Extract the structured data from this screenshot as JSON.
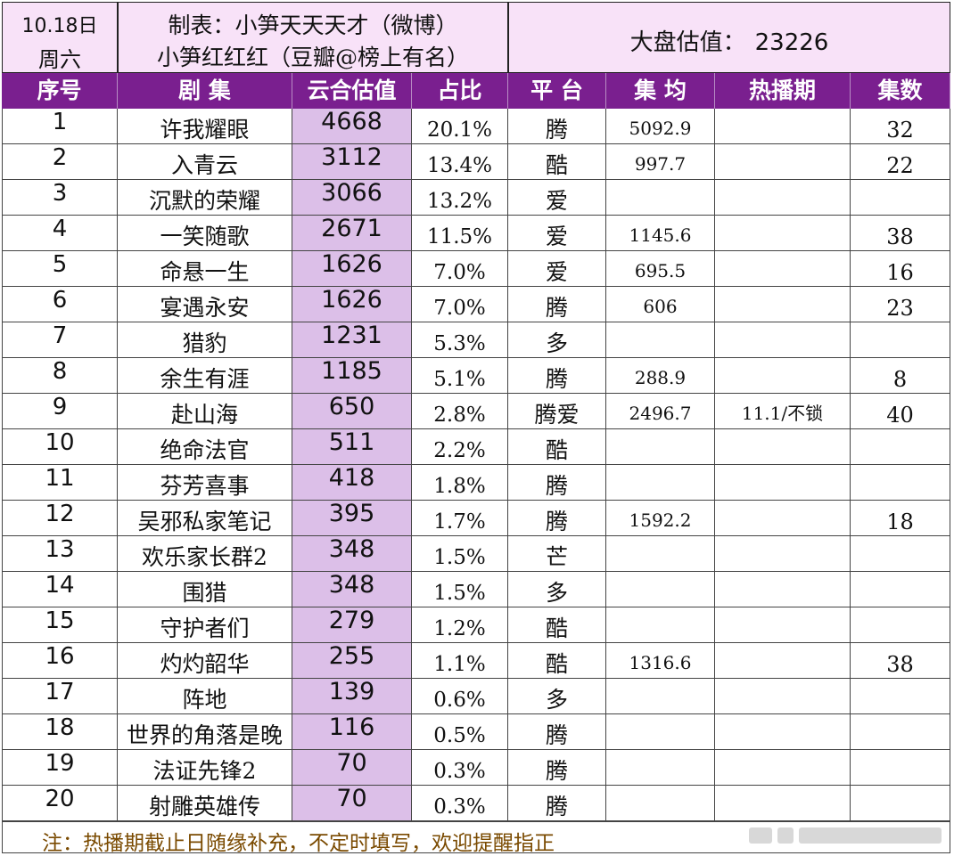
{
  "header": {
    "date": "10.18日",
    "weekday": "周六",
    "credit_line1": "制表：小笋天天天才（微博）",
    "credit_line2": "小笋红红红（豆瓣@榜上有名）",
    "total_label": "大盘估值：",
    "total_value": "23226"
  },
  "columns": [
    "序号",
    "剧  集",
    "云合估值",
    "占比",
    "平 台",
    "集 均",
    "热播期",
    "集数"
  ],
  "rows": [
    {
      "rank": "1",
      "show": "许我耀眼",
      "value": "4668",
      "share": "20.1%",
      "platform": "腾",
      "avg": "5092.9",
      "hot": "",
      "eps": "32"
    },
    {
      "rank": "2",
      "show": "入青云",
      "value": "3112",
      "share": "13.4%",
      "platform": "酷",
      "avg": "997.7",
      "hot": "",
      "eps": "22"
    },
    {
      "rank": "3",
      "show": "沉默的荣耀",
      "value": "3066",
      "share": "13.2%",
      "platform": "爱",
      "avg": "",
      "hot": "",
      "eps": ""
    },
    {
      "rank": "4",
      "show": "一笑随歌",
      "value": "2671",
      "share": "11.5%",
      "platform": "爱",
      "avg": "1145.6",
      "hot": "",
      "eps": "38"
    },
    {
      "rank": "5",
      "show": "命悬一生",
      "value": "1626",
      "share": "7.0%",
      "platform": "爱",
      "avg": "695.5",
      "hot": "",
      "eps": "16"
    },
    {
      "rank": "6",
      "show": "宴遇永安",
      "value": "1626",
      "share": "7.0%",
      "platform": "腾",
      "avg": "606",
      "hot": "",
      "eps": "23"
    },
    {
      "rank": "7",
      "show": "猎豹",
      "value": "1231",
      "share": "5.3%",
      "platform": "多",
      "avg": "",
      "hot": "",
      "eps": ""
    },
    {
      "rank": "8",
      "show": "余生有涯",
      "value": "1185",
      "share": "5.1%",
      "platform": "腾",
      "avg": "288.9",
      "hot": "",
      "eps": "8"
    },
    {
      "rank": "9",
      "show": "赴山海",
      "value": "650",
      "share": "2.8%",
      "platform": "腾爱",
      "avg": "2496.7",
      "hot": "11.1/不锁",
      "eps": "40"
    },
    {
      "rank": "10",
      "show": "绝命法官",
      "value": "511",
      "share": "2.2%",
      "platform": "酷",
      "avg": "",
      "hot": "",
      "eps": ""
    },
    {
      "rank": "11",
      "show": "芬芳喜事",
      "value": "418",
      "share": "1.8%",
      "platform": "腾",
      "avg": "",
      "hot": "",
      "eps": ""
    },
    {
      "rank": "12",
      "show": "吴邪私家笔记",
      "value": "395",
      "share": "1.7%",
      "platform": "腾",
      "avg": "1592.2",
      "hot": "",
      "eps": "18"
    },
    {
      "rank": "13",
      "show": "欢乐家长群2",
      "value": "348",
      "share": "1.5%",
      "platform": "芒",
      "avg": "",
      "hot": "",
      "eps": ""
    },
    {
      "rank": "14",
      "show": "围猎",
      "value": "348",
      "share": "1.5%",
      "platform": "多",
      "avg": "",
      "hot": "",
      "eps": ""
    },
    {
      "rank": "15",
      "show": "守护者们",
      "value": "279",
      "share": "1.2%",
      "platform": "酷",
      "avg": "",
      "hot": "",
      "eps": ""
    },
    {
      "rank": "16",
      "show": "灼灼韶华",
      "value": "255",
      "share": "1.1%",
      "platform": "酷",
      "avg": "1316.6",
      "hot": "",
      "eps": "38"
    },
    {
      "rank": "17",
      "show": "阵地",
      "value": "139",
      "share": "0.6%",
      "platform": "多",
      "avg": "",
      "hot": "",
      "eps": ""
    },
    {
      "rank": "18",
      "show": "世界的角落是晚",
      "value": "116",
      "share": "0.5%",
      "platform": "腾",
      "avg": "",
      "hot": "",
      "eps": ""
    },
    {
      "rank": "19",
      "show": "法证先锋2",
      "value": "70",
      "share": "0.3%",
      "platform": "腾",
      "avg": "",
      "hot": "",
      "eps": ""
    },
    {
      "rank": "20",
      "show": "射雕英雄传",
      "value": "70",
      "share": "0.3%",
      "platform": "腾",
      "avg": "",
      "hot": "",
      "eps": ""
    }
  ],
  "footer_note": "注：热播期截止日随缘补充，不定时填写，欢迎提醒指正",
  "colors": {
    "header_bg": "#f8e2f8",
    "column_bar": "#7a1f8f",
    "value_col_bg": "#dcbfe8",
    "note_text": "#7a4a00"
  }
}
